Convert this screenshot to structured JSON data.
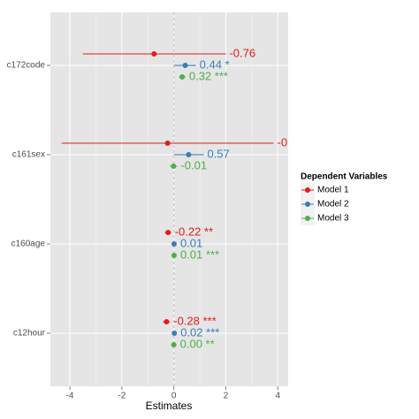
{
  "chart_data": {
    "type": "coefplot",
    "x_label": "Estimates",
    "legend_title": "Dependent Variables",
    "categories": [
      "c172code",
      "c161sex",
      "c160age",
      "c12hour"
    ],
    "xlim": [
      -4.75,
      4.4
    ],
    "xticks": [
      -4,
      -2,
      0,
      2,
      4
    ],
    "grid": true,
    "series": [
      {
        "name": "Model 1",
        "color": "#e41a1c",
        "values": [
          -0.76,
          -0.24,
          -0.22,
          -0.28
        ],
        "value_labels": [
          "-0.76",
          "-0",
          "-0.22 **",
          "-0.28 ***"
        ],
        "ci_low": [
          -3.5,
          -4.32,
          -0.35,
          -0.42
        ],
        "ci_high": [
          2.0,
          3.84,
          -0.1,
          -0.15
        ]
      },
      {
        "name": "Model 2",
        "color": "#377eb8",
        "values": [
          0.44,
          0.57,
          0.01,
          0.02
        ],
        "value_labels": [
          "0.44 *",
          "0.57",
          "0.01",
          "0.02 ***"
        ],
        "ci_low": [
          0.0,
          0.0,
          -0.08,
          -0.01
        ],
        "ci_high": [
          0.85,
          1.15,
          0.1,
          0.05
        ]
      },
      {
        "name": "Model 3",
        "color": "#4daf4a",
        "values": [
          0.32,
          -0.01,
          0.01,
          0.0
        ],
        "value_labels": [
          "0.32 ***",
          "-0.01",
          "0.01 ***",
          "0.00 **"
        ],
        "ci_low": [
          0.2,
          -0.15,
          0.0,
          -0.01
        ],
        "ci_high": [
          0.45,
          0.13,
          0.02,
          0.01
        ]
      }
    ]
  }
}
